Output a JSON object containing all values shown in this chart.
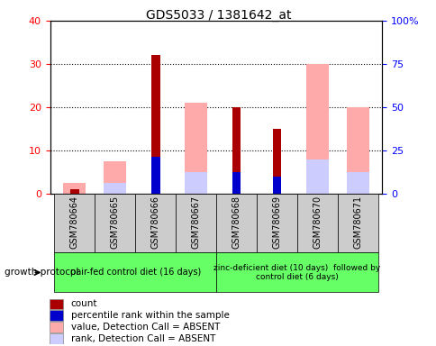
{
  "title": "GDS5033 / 1381642_at",
  "samples": [
    "GSM780664",
    "GSM780665",
    "GSM780666",
    "GSM780667",
    "GSM780668",
    "GSM780669",
    "GSM780670",
    "GSM780671"
  ],
  "count": [
    1,
    0,
    32,
    0,
    20,
    15,
    0,
    0
  ],
  "percentile_rank": [
    0,
    0,
    8.5,
    0,
    5,
    4,
    0,
    0
  ],
  "value_absent": [
    2.5,
    7.5,
    0,
    21,
    0,
    0,
    30,
    20
  ],
  "rank_absent": [
    0,
    2.5,
    0,
    5,
    0,
    0,
    8,
    5
  ],
  "ylim_left": [
    0,
    40
  ],
  "ylim_right": [
    0,
    100
  ],
  "yticks_left": [
    0,
    10,
    20,
    30,
    40
  ],
  "yticks_right": [
    0,
    25,
    50,
    75,
    100
  ],
  "yticklabels_right": [
    "0",
    "25",
    "50",
    "75",
    "100%"
  ],
  "color_count": "#aa0000",
  "color_rank": "#0000cc",
  "color_value_absent": "#ffaaaa",
  "color_rank_absent": "#ccccff",
  "group1_label": "pair-fed control diet (16 days)",
  "group2_label": "zinc-deficient diet (10 days)  followed by\ncontrol diet (6 days)",
  "growth_protocol_label": "growth protocol",
  "legend_items": [
    {
      "label": "count",
      "color": "#aa0000"
    },
    {
      "label": "percentile rank within the sample",
      "color": "#0000cc"
    },
    {
      "label": "value, Detection Call = ABSENT",
      "color": "#ffaaaa"
    },
    {
      "label": "rank, Detection Call = ABSENT",
      "color": "#ccccff"
    }
  ],
  "group_box_color": "#66ff66",
  "sample_box_color": "#cccccc"
}
